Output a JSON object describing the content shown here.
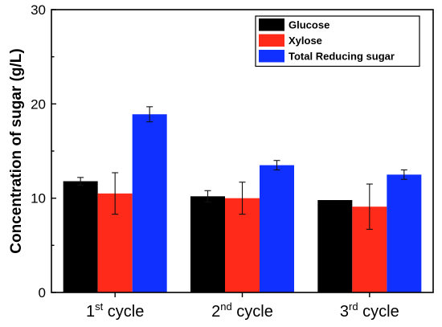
{
  "chart_data": {
    "type": "bar",
    "ylabel": "Concentration of sugar (g/L)",
    "xlabel": "",
    "ylim": [
      0,
      30
    ],
    "yticks": [
      0,
      10,
      20,
      30
    ],
    "categories": [
      {
        "base": "1",
        "sup": "st",
        "rest": " cycle"
      },
      {
        "base": "2",
        "sup": "nd",
        "rest": " cycle"
      },
      {
        "base": "3",
        "sup": "rd",
        "rest": " cycle"
      }
    ],
    "series": [
      {
        "name": "Glucose",
        "color": "#000000",
        "values": [
          11.8,
          10.2,
          9.8
        ],
        "errors": [
          0.4,
          0.6,
          0.0
        ]
      },
      {
        "name": "Xylose",
        "color": "#ff2a1a",
        "values": [
          10.5,
          10.0,
          9.1
        ],
        "errors": [
          2.2,
          1.7,
          2.4
        ]
      },
      {
        "name": "Total Reducing sugar",
        "color": "#1030ff",
        "values": [
          18.9,
          13.5,
          12.5
        ],
        "errors": [
          0.8,
          0.5,
          0.5
        ]
      }
    ],
    "legend_position": "top-right",
    "grid": false
  }
}
